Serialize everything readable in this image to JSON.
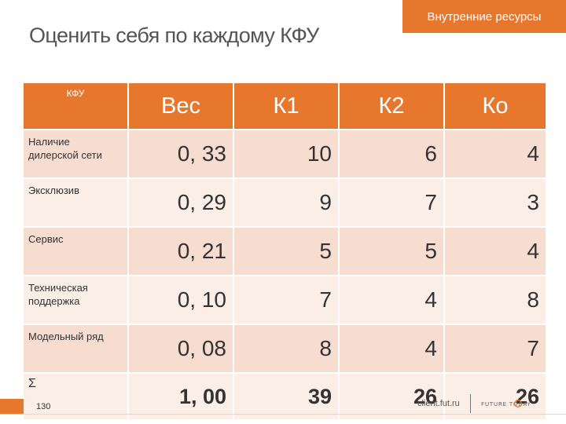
{
  "header": {
    "tag": "Внутренние ресурсы",
    "title": "Оценить себя по каждому КФУ"
  },
  "table": {
    "columns": [
      "КФУ",
      "Вес",
      "К1",
      "К2",
      "Ко"
    ],
    "rows": [
      {
        "label": "Наличие дилерской сети",
        "values": [
          "0, 33",
          "10",
          "6",
          "4"
        ]
      },
      {
        "label": "Эксклюзив",
        "values": [
          "0, 29",
          "9",
          "7",
          "3"
        ]
      },
      {
        "label": "Сервис",
        "values": [
          "0, 21",
          "5",
          "5",
          "4"
        ]
      },
      {
        "label": "Техническая поддержка",
        "values": [
          "0, 10",
          "7",
          "4",
          "8"
        ]
      },
      {
        "label": "Модельный ряд",
        "values": [
          "0, 08",
          "8",
          "4",
          "7"
        ]
      }
    ],
    "total": {
      "label": "Σ",
      "values": [
        "1, 00",
        "39",
        "26",
        "26"
      ]
    }
  },
  "footer": {
    "page_number": "130",
    "url": "client.fut.ru",
    "logo_text": "FUTURE TODAY"
  },
  "colors": {
    "accent": "#e8772e",
    "row_odd": "#f7dcd0",
    "row_even": "#fbeee7"
  }
}
